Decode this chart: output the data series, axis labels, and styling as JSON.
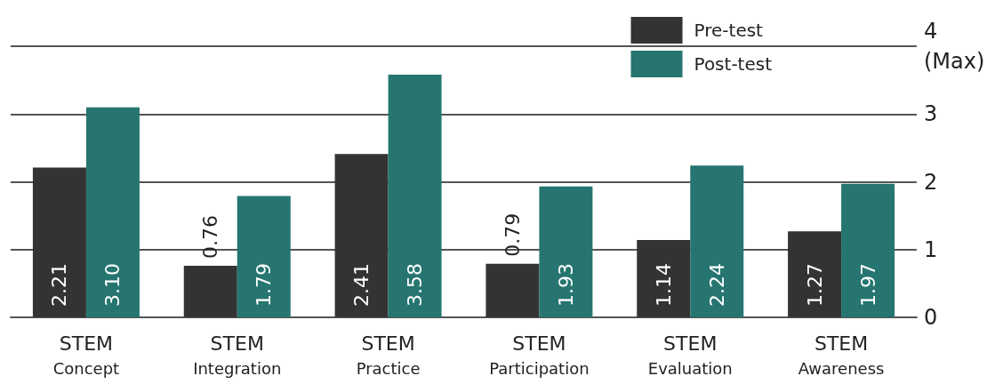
{
  "chart_data": {
    "type": "bar",
    "categories": [
      "STEM\nConcept",
      "STEM\nIntegration",
      "STEM\nPractice",
      "STEM\nParticipation",
      "STEM\nEvaluation",
      "STEM\nAwareness"
    ],
    "series": [
      {
        "name": "Pre-test",
        "color": "#333333",
        "values": [
          2.21,
          0.76,
          2.41,
          0.79,
          1.14,
          1.27
        ],
        "value_labels": [
          "2.21",
          "0.76",
          "2.41",
          "0.79",
          "1.14",
          "1.27"
        ]
      },
      {
        "name": "Post-test",
        "color": "#267570",
        "values": [
          3.1,
          1.79,
          3.58,
          1.93,
          2.24,
          1.97
        ],
        "value_labels": [
          "3.10",
          "1.79",
          "3.58",
          "1.93",
          "2.24",
          "1.97"
        ]
      }
    ],
    "ylim": [
      0,
      4
    ],
    "yticks": [
      0,
      1,
      2,
      3,
      {
        "value": 4,
        "label": "4\n(Max)"
      }
    ],
    "grid": "y",
    "legend": "top right"
  }
}
